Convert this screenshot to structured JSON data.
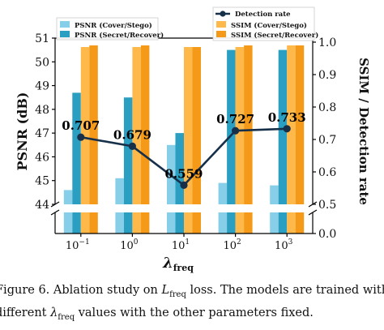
{
  "chart_data": {
    "type": "bar",
    "categories": [
      "10^-1",
      "10^0",
      "10^1",
      "10^2",
      "10^3"
    ],
    "tick_labels": [
      {
        "base": "10",
        "exp": "−1"
      },
      {
        "base": "10",
        "exp": "0"
      },
      {
        "base": "10",
        "exp": "1"
      },
      {
        "base": "10",
        "exp": "2"
      },
      {
        "base": "10",
        "exp": "3"
      }
    ],
    "xlabel": {
      "symbol": "λ",
      "sub": "freq"
    },
    "ylabel_left": "PSNR (dB)",
    "ylabel_right": "SSIM / Detection rate",
    "left_axis": {
      "upper_range": [
        44,
        51
      ],
      "upper_ticks": [
        44,
        45,
        46,
        47,
        48,
        49,
        50,
        51
      ],
      "broken": true
    },
    "right_axis": {
      "upper_range": [
        0.5,
        1.0
      ],
      "upper_ticks": [
        0.5,
        0.6,
        0.7,
        0.8,
        0.9,
        1.0
      ],
      "lower_tick": 0.0,
      "broken": true
    },
    "series": [
      {
        "name": "PSNR (Cover/Stego)",
        "axis": "left",
        "color": "#87cfe8",
        "values": [
          44.6,
          45.1,
          46.5,
          44.9,
          44.8
        ]
      },
      {
        "name": "PSNR (Secret/Recover)",
        "axis": "left",
        "color": "#2a9fc2",
        "values": [
          48.7,
          48.5,
          47.0,
          50.5,
          50.5
        ]
      },
      {
        "name": "SSIM (Cover/Stego)",
        "axis": "right",
        "color": "#ffb84a",
        "values": [
          0.985,
          0.985,
          0.985,
          0.985,
          0.99
        ]
      },
      {
        "name": "SSIM (Secret/Recover)",
        "axis": "right",
        "color": "#f59a18",
        "values": [
          0.99,
          0.99,
          0.985,
          0.99,
          0.99
        ]
      },
      {
        "name": "Detection rate",
        "axis": "right",
        "type": "line",
        "color": "#17304a",
        "values": [
          0.707,
          0.679,
          0.559,
          0.727,
          0.733
        ]
      }
    ],
    "data_labels": [
      "0.707",
      "0.679",
      "0.559",
      "0.727",
      "0.733"
    ],
    "legend": {
      "left": "top-left",
      "right": "top-right"
    }
  },
  "caption": {
    "prefix": "Figure 6. Ablation study on ",
    "loss_symbol": "L",
    "loss_sub": "freq",
    "middle": " loss. The models are trained with",
    "line2_prefix": "different ",
    "lambda_symbol": "λ",
    "lambda_sub": "freq",
    "line2_suffix": " values with the other parameters fixed."
  }
}
